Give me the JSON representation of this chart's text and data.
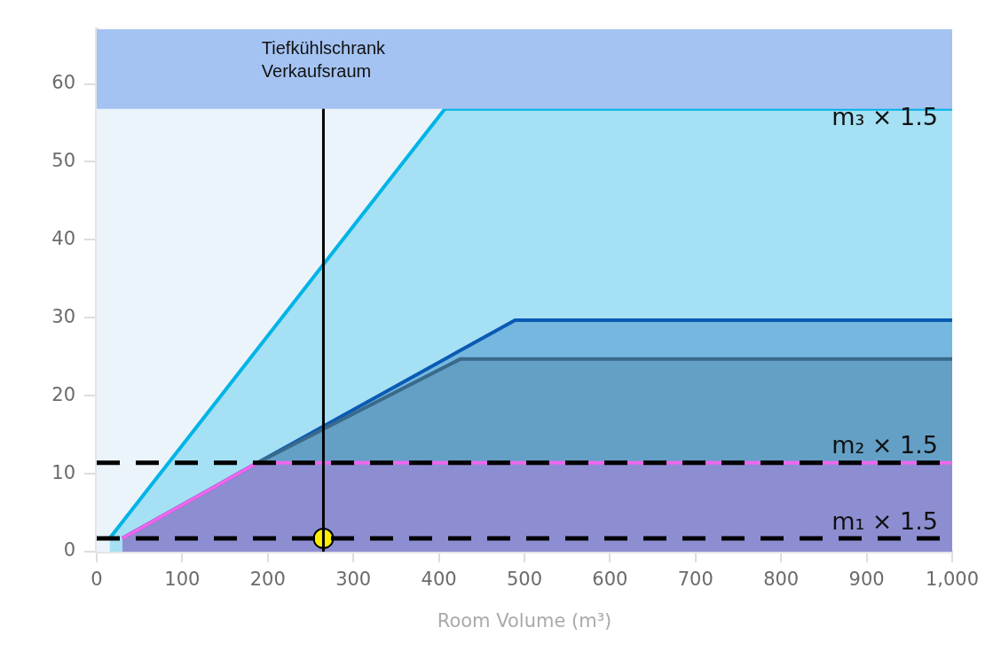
{
  "chart_data": {
    "type": "area",
    "xlabel": "Room Volume (m³)",
    "xlim": [
      0,
      1000
    ],
    "xticks": [
      0,
      100,
      200,
      300,
      400,
      500,
      600,
      700,
      800,
      900,
      {
        "value": 1000,
        "label": "1,000"
      }
    ],
    "ylim": [
      0,
      67
    ],
    "yticks": [
      0,
      10,
      20,
      30,
      40,
      50,
      60
    ],
    "grid": false,
    "legend": false,
    "series": [
      {
        "color": "#00b4e6",
        "x": [
          15,
          407,
          1000
        ],
        "values": [
          1.7,
          56.8,
          56.8
        ]
      },
      {
        "color": "#0a5ab4",
        "x": [
          30,
          188,
          489,
          1000
        ],
        "values": [
          1.7,
          11.4,
          29.7,
          29.7
        ]
      },
      {
        "color": "#3a6a8a",
        "x": [
          30,
          188,
          425,
          1000
        ],
        "values": [
          1.7,
          11.4,
          24.7,
          24.7
        ]
      },
      {
        "color": "#ee66ee",
        "x": [
          30,
          188,
          1000
        ],
        "values": [
          1.7,
          11.4,
          11.4
        ]
      },
      {
        "type": "scatter",
        "color": "#ffee00",
        "x": [
          265
        ],
        "values": [
          1.7
        ],
        "marker": "circle"
      }
    ],
    "ref_lines": [
      {
        "axis": "y",
        "value": 1.7,
        "label": "m₁ × 1.5",
        "line_style": "dashed",
        "color": "#000000"
      },
      {
        "axis": "y",
        "value": 11.4,
        "label": "m₂ × 1.5",
        "line_style": "dashed",
        "color": "#000000"
      },
      {
        "axis": "x",
        "value": 265,
        "label": "Tiefkühlschrank\nVerkaufsraum",
        "line_style": "solid",
        "color": "#000000"
      }
    ],
    "bands": [
      {
        "axis": "y",
        "from": 56.8,
        "to": 67,
        "color": "#a4c3f2"
      }
    ],
    "annotations": [
      {
        "text": "m₃ × 1.5",
        "x": 1000,
        "y": 56.8
      }
    ]
  }
}
